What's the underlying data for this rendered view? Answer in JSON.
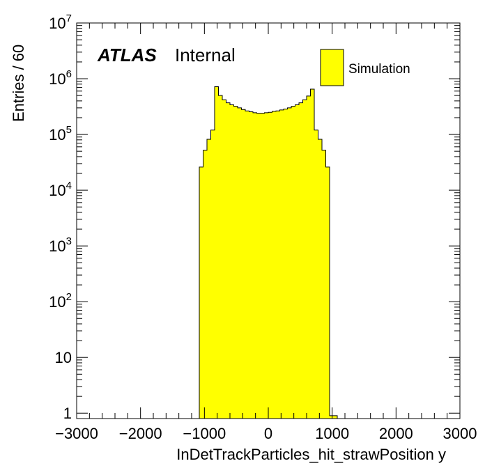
{
  "chart_data": {
    "type": "bar",
    "title": "",
    "xlabel": "InDetTrackParticles_hit_strawPosition y",
    "ylabel": "Entries / 60",
    "xlim": [
      -3000,
      3000
    ],
    "ylim": [
      0.8,
      10000000
    ],
    "yscale": "log",
    "bin_width": 60,
    "x_ticks": [
      -3000,
      -2000,
      -1000,
      0,
      1000,
      2000,
      3000
    ],
    "x_tick_labels": [
      "−3000",
      "−2000",
      "−1000",
      "0",
      "1000",
      "2000",
      "3000"
    ],
    "y_ticks": [
      {
        "base": "1",
        "exp": "",
        "value": 1
      },
      {
        "base": "10",
        "exp": "",
        "value": 10
      },
      {
        "base": "10",
        "exp": "2",
        "value": 100
      },
      {
        "base": "10",
        "exp": "3",
        "value": 1000
      },
      {
        "base": "10",
        "exp": "4",
        "value": 10000
      },
      {
        "base": "10",
        "exp": "5",
        "value": 100000
      },
      {
        "base": "10",
        "exp": "6",
        "value": 1000000
      },
      {
        "base": "10",
        "exp": "7",
        "value": 10000000
      }
    ],
    "bin_edges": [
      -1080,
      -1020,
      -960,
      -900,
      -840,
      -780,
      -720,
      -660,
      -600,
      -540,
      -480,
      -420,
      -360,
      -300,
      -240,
      -180,
      -120,
      -60,
      0,
      60,
      120,
      180,
      240,
      300,
      360,
      420,
      480,
      540,
      600,
      660,
      720,
      780,
      840,
      900,
      960,
      1020,
      1080
    ],
    "series": [
      {
        "name": "Simulation",
        "color": "#ffff00",
        "edge_color": "#000000",
        "values": [
          26000,
          52000,
          82000,
          120000,
          720000,
          500000,
          420000,
          370000,
          340000,
          320000,
          300000,
          280000,
          265000,
          255000,
          245000,
          240000,
          240000,
          245000,
          250000,
          260000,
          265000,
          275000,
          285000,
          300000,
          320000,
          340000,
          370000,
          420000,
          490000,
          650000,
          120000,
          82000,
          52000,
          26000,
          0.9,
          0.9
        ]
      }
    ],
    "legend_position": "top-right",
    "annotations": {
      "atlas_label": "ATLAS",
      "atlas_sub": "Internal"
    },
    "grid": false
  }
}
